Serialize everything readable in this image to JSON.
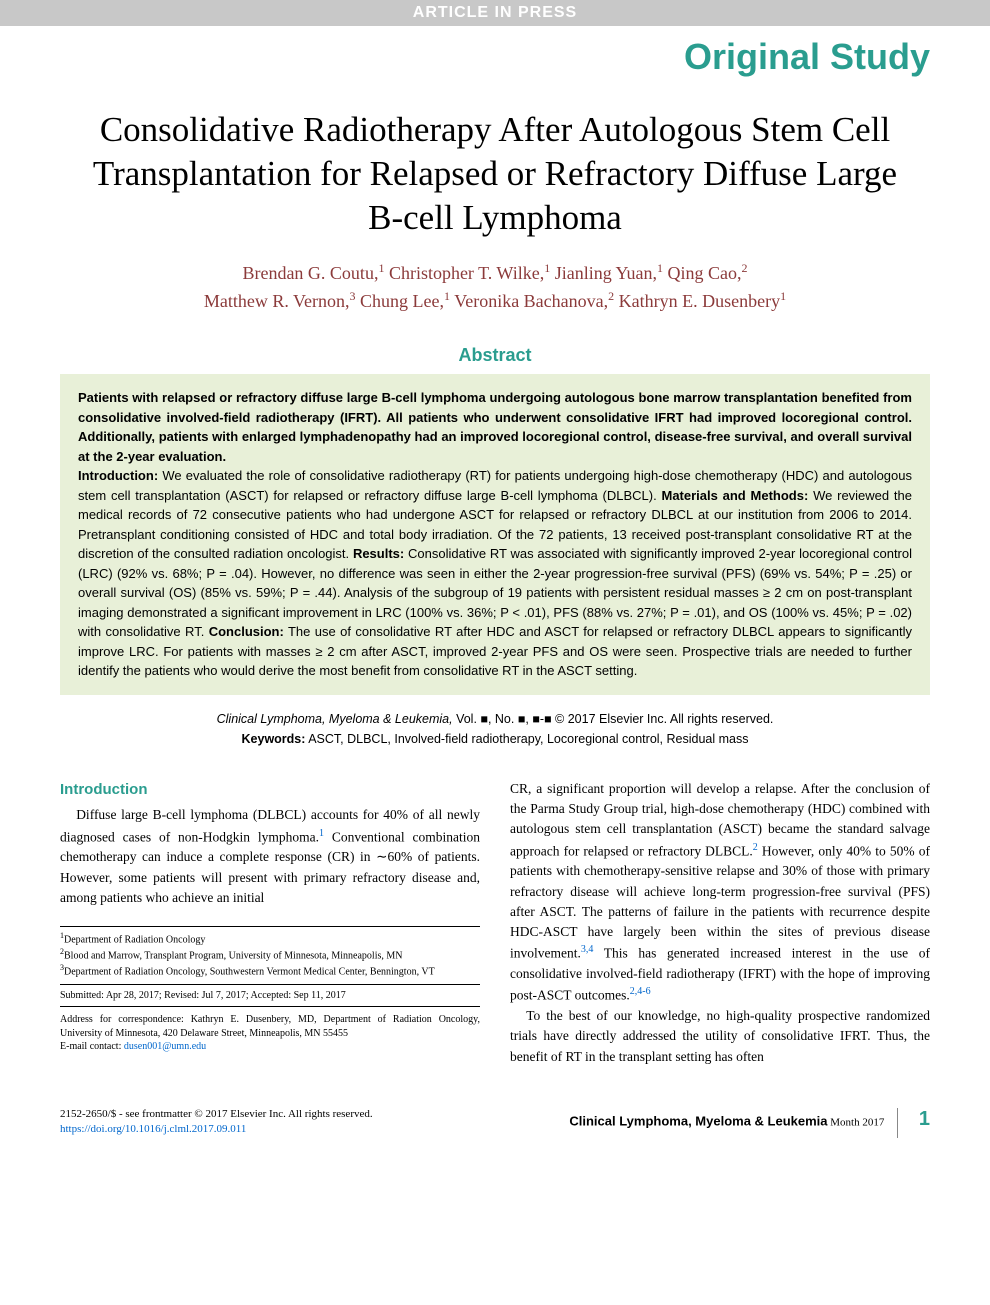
{
  "banner": "ARTICLE IN PRESS",
  "studyType": "Original Study",
  "title": "Consolidative Radiotherapy After Autologous Stem Cell Transplantation for Relapsed or Refractory Diffuse Large B-cell Lymphoma",
  "authors": [
    {
      "name": "Brendan G. Coutu,",
      "aff": "1"
    },
    {
      "name": "Christopher T. Wilke,",
      "aff": "1"
    },
    {
      "name": "Jianling Yuan,",
      "aff": "1"
    },
    {
      "name": "Qing Cao,",
      "aff": "2"
    },
    {
      "name": "Matthew R. Vernon,",
      "aff": "3"
    },
    {
      "name": "Chung Lee,",
      "aff": "1"
    },
    {
      "name": "Veronika Bachanova,",
      "aff": "2"
    },
    {
      "name": "Kathryn E. Dusenbery",
      "aff": "1"
    }
  ],
  "abstractHeader": "Abstract",
  "abstractBold": "Patients with relapsed or refractory diffuse large B-cell lymphoma undergoing autologous bone marrow transplantation benefited from consolidative involved-field radiotherapy (IFRT). All patients who underwent consolidative IFRT had improved locoregional control. Additionally, patients with enlarged lymphadenopathy had an improved locoregional control, disease-free survival, and overall survival at the 2-year evaluation.",
  "abstractSections": [
    {
      "heading": "Introduction:",
      "text": " We evaluated the role of consolidative radiotherapy (RT) for patients undergoing high-dose chemotherapy (HDC) and autologous stem cell transplantation (ASCT) for relapsed or refractory diffuse large B-cell lymphoma (DLBCL). "
    },
    {
      "heading": "Materials and Methods:",
      "text": " We reviewed the medical records of 72 consecutive patients who had undergone ASCT for relapsed or refractory DLBCL at our institution from 2006 to 2014. Pretransplant conditioning consisted of HDC and total body irradiation. Of the 72 patients, 13 received post-transplant consolidative RT at the discretion of the consulted radiation oncologist. "
    },
    {
      "heading": "Results:",
      "text": " Consolidative RT was associated with significantly improved 2-year locoregional control (LRC) (92% vs. 68%; P = .04). However, no difference was seen in either the 2-year progression-free survival (PFS) (69% vs. 54%; P = .25) or overall survival (OS) (85% vs. 59%; P = .44). Analysis of the subgroup of 19 patients with persistent residual masses ≥ 2 cm on post-transplant imaging demonstrated a significant improvement in LRC (100% vs. 36%; P < .01), PFS (88% vs. 27%; P = .01), and OS (100% vs. 45%; P = .02) with consolidative RT. "
    },
    {
      "heading": "Conclusion:",
      "text": " The use of consolidative RT after HDC and ASCT for relapsed or refractory DLBCL appears to significantly improve LRC. For patients with masses ≥ 2 cm after ASCT, improved 2-year PFS and OS were seen. Prospective trials are needed to further identify the patients who would derive the most benefit from consolidative RT in the ASCT setting."
    }
  ],
  "citation": {
    "journal": "Clinical Lymphoma, Myeloma & Leukemia,",
    "vol": " Vol. ■, No. ■, ■-■ © 2017 Elsevier Inc. All rights reserved.",
    "keywordsLabel": "Keywords:",
    "keywords": " ASCT, DLBCL, Involved-field radiotherapy, Locoregional control, Residual mass"
  },
  "intro": {
    "heading": "Introduction",
    "para1a": "Diffuse large B-cell lymphoma (DLBCL) accounts for 40% of all newly diagnosed cases of non-Hodgkin lymphoma.",
    "ref1": "1",
    "para1b": " Conventional combination chemotherapy can induce a complete response (CR) in ∼60% of patients. However, some patients will present with primary refractory disease and, among patients who achieve an initial",
    "para2a": "CR, a significant proportion will develop a relapse. After the conclusion of the Parma Study Group trial, high-dose chemotherapy (HDC) combined with autologous stem cell transplantation (ASCT) became the standard salvage approach for relapsed or refractory DLBCL.",
    "ref2": "2",
    "para2b": " However, only 40% to 50% of patients with chemotherapy-sensitive relapse and 30% of those with primary refractory disease will achieve long-term progression-free survival (PFS) after ASCT. The patterns of failure in the patients with recurrence despite HDC-ASCT have largely been within the sites of previous disease involvement.",
    "ref34": "3,4",
    "para2c": " This has generated increased interest in the use of consolidative involved-field radiotherapy (IFRT) with the hope of improving post-ASCT outcomes.",
    "ref246": "2,4-6",
    "para3": "To the best of our knowledge, no high-quality prospective randomized trials have directly addressed the utility of consolidative IFRT. Thus, the benefit of RT in the transplant setting has often"
  },
  "affiliations": [
    {
      "num": "1",
      "text": "Department of Radiation Oncology"
    },
    {
      "num": "2",
      "text": "Blood and Marrow, Transplant Program, University of Minnesota, Minneapolis, MN"
    },
    {
      "num": "3",
      "text": "Department of Radiation Oncology, Southwestern Vermont Medical Center, Bennington, VT"
    }
  ],
  "submitted": "Submitted: Apr 28, 2017; Revised: Jul 7, 2017; Accepted: Sep 11, 2017",
  "correspondence": {
    "text": "Address for correspondence: Kathryn E. Dusenbery, MD, Department of Radiation Oncology, University of Minnesota, 420 Delaware Street, Minneapolis, MN 55455",
    "emailLabel": "E-mail contact: ",
    "email": "dusen001@umn.edu"
  },
  "footer": {
    "issn": "2152-2650/$ - see frontmatter © 2017 Elsevier Inc. All rights reserved.",
    "doi": "https://doi.org/10.1016/j.clml.2017.09.011",
    "journalName": "Clinical Lymphoma, Myeloma & Leukemia",
    "month": " Month 2017",
    "pageNum": "1"
  }
}
